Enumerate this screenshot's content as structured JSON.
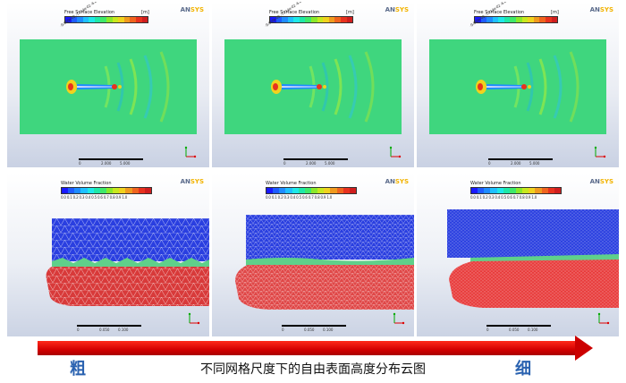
{
  "brand": {
    "prefix": "AN",
    "suffix": "SYS"
  },
  "top_legend": {
    "title": "Free Surface Elevation",
    "unit": "[m]",
    "ticks": "-9.000e-02 -7.714e-02 -6.429e-02 -5.143e-02 -3.857e-02 -2.571e-02 -1.286e-02 0.000e+00 1.286e-02 2.571e-02 3.857e-02 5.143e-02 6.429e-02 7.714e-02 9.000e-02"
  },
  "bottom_legend": {
    "title": "Water Volume Fraction",
    "ticks": "0.0 0.1 0.2 0.3 0.4 0.5 0.6 0.7 0.8 0.9 1.0"
  },
  "top_scale": {
    "left": "0",
    "mid1": "2.000",
    "mid2": "5.000",
    "right": "10.000 (m)"
  },
  "bottom_scale": {
    "left": "0",
    "mid1": "0.050",
    "mid2": "0.100",
    "right": "0.200 (m)"
  },
  "colormap": [
    "#1a1aff",
    "#1e5cff",
    "#1e8cff",
    "#1ec0ff",
    "#1ee8e8",
    "#1ee8a8",
    "#3ee86a",
    "#8ae82a",
    "#c8e81e",
    "#f0d21e",
    "#f09a1e",
    "#f0641e",
    "#e8321e",
    "#d01e1e"
  ],
  "arrow": {
    "color": "#d40000"
  },
  "labels": {
    "coarse": "粗",
    "fine": "细",
    "caption": "不同网格尺度下的自由表面高度分布云图"
  }
}
